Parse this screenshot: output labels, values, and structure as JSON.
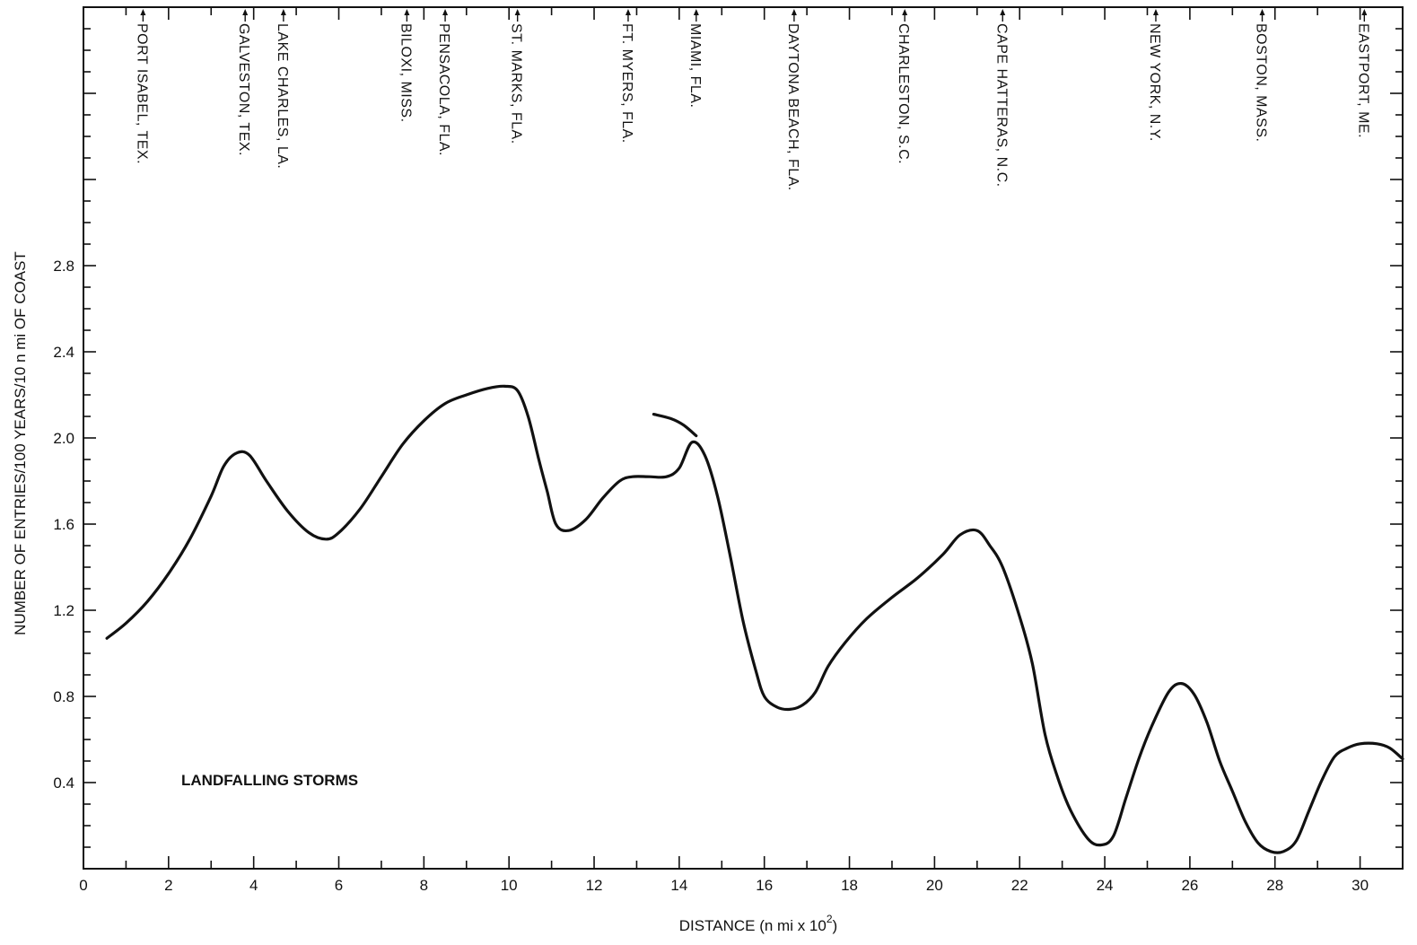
{
  "chart_data": {
    "type": "line",
    "title": "",
    "xlabel": "DISTANCE (n mi x 10",
    "xlabel_sup": "2",
    "xlabel_tail": ")",
    "ylabel": "NUMBER OF ENTRIES/100 YEARS/10 n mi OF COAST",
    "xlim": [
      0,
      31
    ],
    "ylim": [
      0,
      4
    ],
    "x_ticks": [
      0,
      2,
      4,
      6,
      8,
      10,
      12,
      14,
      16,
      18,
      20,
      22,
      24,
      26,
      28,
      30
    ],
    "x_tick_labels": [
      "0",
      "2",
      "4",
      "6",
      "8",
      "10",
      "12",
      "14",
      "16",
      "18",
      "20",
      "22",
      "24",
      "26",
      "28",
      "30"
    ],
    "y_ticks": [
      0.4,
      0.8,
      1.2,
      1.6,
      2.0,
      2.4,
      2.8
    ],
    "y_tick_labels": [
      "0.4",
      "0.8",
      "1.2",
      "1.6",
      "2.0",
      "2.4",
      "2.8"
    ],
    "grid": false,
    "annotation": "LANDFALLING STORMS",
    "locations": [
      {
        "name": "PORT ISABEL, TEX.",
        "x": 1.4
      },
      {
        "name": "GALVESTON, TEX.",
        "x": 3.8
      },
      {
        "name": "LAKE CHARLES, LA.",
        "x": 4.7
      },
      {
        "name": "BILOXI, MISS.",
        "x": 7.6
      },
      {
        "name": "PENSACOLA, FLA.",
        "x": 8.5
      },
      {
        "name": "ST. MARKS, FLA.",
        "x": 10.2
      },
      {
        "name": "FT. MYERS, FLA.",
        "x": 12.8
      },
      {
        "name": "MIAMI, FLA.",
        "x": 14.4
      },
      {
        "name": "DAYTONA BEACH, FLA.",
        "x": 16.7
      },
      {
        "name": "CHARLESTON, S.C.",
        "x": 19.3
      },
      {
        "name": "CAPE HATTERAS, N.C.",
        "x": 21.6
      },
      {
        "name": "NEW YORK, N.Y.",
        "x": 25.2
      },
      {
        "name": "BOSTON, MASS.",
        "x": 27.7
      },
      {
        "name": "EASTPORT, ME.",
        "x": 30.1
      }
    ],
    "series": [
      {
        "x": [
          0.55,
          1.0,
          1.5,
          2.0,
          2.5,
          3.0,
          3.3,
          3.6,
          3.9,
          4.3,
          4.8,
          5.3,
          5.7,
          6.0,
          6.5,
          7.0,
          7.5,
          8.0,
          8.5,
          9.0,
          9.5,
          9.9,
          10.2,
          10.45,
          10.7,
          10.9,
          11.1,
          11.4,
          11.8,
          12.2,
          12.6,
          12.9,
          13.3,
          13.7,
          14.0,
          14.3,
          14.6,
          14.9,
          15.2,
          15.5,
          15.8,
          16.0,
          16.3,
          16.6,
          16.9,
          17.2,
          17.5,
          17.9,
          18.4,
          19.0,
          19.6,
          20.2,
          20.6,
          21.0,
          21.3,
          21.6,
          22.0,
          22.3,
          22.6,
          22.9,
          23.2,
          23.6,
          23.9,
          24.2,
          24.5,
          24.8,
          25.1,
          25.5,
          25.8,
          26.1,
          26.4,
          26.7,
          27.0,
          27.3,
          27.6,
          27.9,
          28.2,
          28.5,
          28.8,
          29.1,
          29.4,
          29.7,
          30.0,
          30.4,
          30.7,
          31.0
        ],
        "y": [
          1.07,
          1.14,
          1.24,
          1.37,
          1.53,
          1.73,
          1.87,
          1.93,
          1.92,
          1.8,
          1.66,
          1.56,
          1.53,
          1.56,
          1.67,
          1.82,
          1.97,
          2.08,
          2.16,
          2.2,
          2.23,
          2.24,
          2.22,
          2.1,
          1.9,
          1.75,
          1.6,
          1.57,
          1.62,
          1.72,
          1.8,
          1.82,
          1.82,
          1.82,
          1.86,
          1.98,
          1.92,
          1.73,
          1.45,
          1.15,
          0.92,
          0.8,
          0.75,
          0.74,
          0.76,
          0.82,
          0.94,
          1.05,
          1.16,
          1.26,
          1.35,
          1.46,
          1.55,
          1.57,
          1.5,
          1.4,
          1.17,
          0.95,
          0.62,
          0.42,
          0.27,
          0.14,
          0.11,
          0.15,
          0.33,
          0.51,
          0.66,
          0.82,
          0.86,
          0.81,
          0.68,
          0.5,
          0.36,
          0.22,
          0.12,
          0.08,
          0.08,
          0.13,
          0.27,
          0.41,
          0.52,
          0.56,
          0.58,
          0.58,
          0.56,
          0.51
        ]
      },
      {
        "x": [
          13.4,
          13.8,
          14.1,
          14.4
        ],
        "y": [
          2.11,
          2.09,
          2.06,
          2.01
        ]
      }
    ]
  }
}
